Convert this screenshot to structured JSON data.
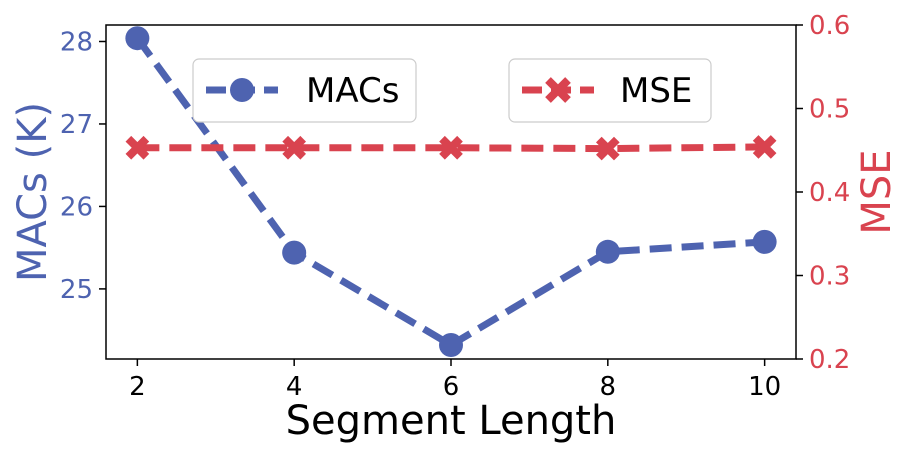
{
  "chart_data": {
    "type": "line",
    "xlabel": "Segment Length",
    "x": [
      2,
      4,
      6,
      8,
      10
    ],
    "xticks": [
      "2",
      "4",
      "6",
      "8",
      "10"
    ],
    "xlim": [
      1.6,
      10.4
    ],
    "ylabel_left": "MACs (K)",
    "ylim_left": [
      24.15,
      28.2
    ],
    "yticks_left": [
      "25",
      "26",
      "27",
      "28"
    ],
    "ylabel_right": "MSE",
    "ylim_right": [
      0.2,
      0.6
    ],
    "yticks_right": [
      "0.2",
      "0.3",
      "0.4",
      "0.5",
      "0.6"
    ],
    "grid": false,
    "legend_position": "top",
    "series": [
      {
        "name": "MACs",
        "axis": "left",
        "values": [
          28.04,
          25.44,
          24.32,
          25.45,
          25.57
        ],
        "color": "#4e63b0",
        "marker": "circle",
        "linestyle": "dashed"
      },
      {
        "name": "MSE",
        "axis": "right",
        "values": [
          0.453,
          0.453,
          0.453,
          0.452,
          0.454
        ],
        "color": "#d9434f",
        "marker": "x",
        "linestyle": "dashed"
      }
    ]
  }
}
